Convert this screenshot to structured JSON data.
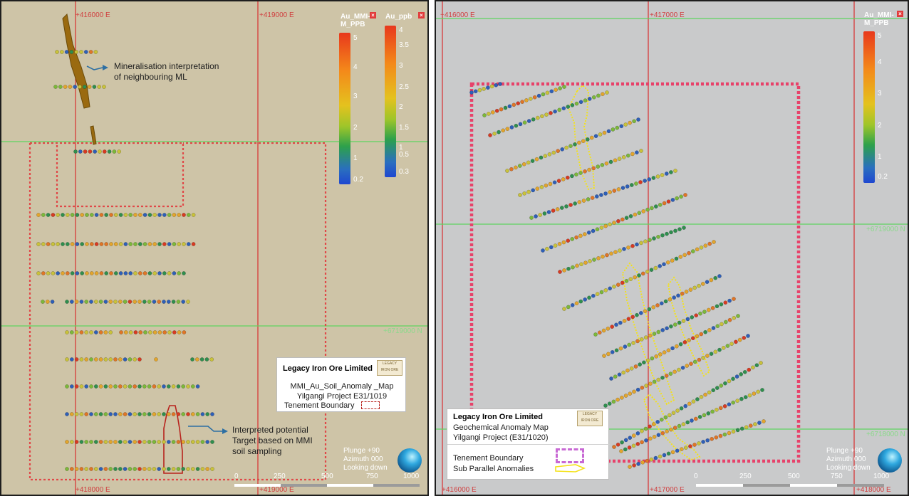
{
  "left_map": {
    "coords": {
      "top_left": "+416000 E",
      "top_right": "+419000 E",
      "bottom_left": "+418000 E",
      "bottom_right": "+419000 E",
      "right_mid": "+6719000 N"
    },
    "legends": [
      {
        "title": "Au_MMI-M_PPB",
        "ticks": [
          "5",
          "4",
          "3",
          "2",
          "1",
          "0.2"
        ]
      },
      {
        "title": "Au_ppb",
        "ticks": [
          "4",
          "3.5",
          "3",
          "2.5",
          "2",
          "1.5",
          "1",
          "0.5",
          "0.3"
        ]
      }
    ],
    "annotations": {
      "mineralisation": [
        "Mineralisation interpretation",
        "of neighbouring ML"
      ],
      "target": [
        "Interpreted potential",
        "Target based on  MMI",
        "soil sampling"
      ]
    },
    "title_block": {
      "company": "Legacy Iron Ore Limited",
      "map_name": "MMI_Au_Soil_Anomaly _Map",
      "project": "Yilgangi Project E31/1019",
      "boundary_label": "Tenement Boundary"
    },
    "view": {
      "plunge": "Plunge +90",
      "azimuth": "Azimuth 000",
      "looking": "Looking down"
    },
    "scale": [
      "0",
      "250",
      "500",
      "750",
      "1000"
    ]
  },
  "right_map": {
    "coords": {
      "top_left": "+416000 E",
      "top_mid": "+417000 E",
      "bottom_left": "+416000 E",
      "bottom_mid": "+417000 E",
      "bottom_right": "+418000 E",
      "right_mid": "+6719000 N",
      "right_low": "+6718000 N"
    },
    "legend": {
      "title": "Au_MMI-M_PPB",
      "ticks": [
        "5",
        "4",
        "3",
        "2",
        "1",
        "0.2"
      ]
    },
    "title_block": {
      "company": "Legacy Iron Ore Limited",
      "map_name": "Geochemical Anomaly Map",
      "project": "Yilgangi Project (E31/1020)",
      "boundary_label": "Tenement Boundary",
      "anomaly_label": "Sub Parallel Anomalies"
    },
    "view": {
      "plunge": "Plunge +90",
      "azimuth": "Azimuth 000",
      "looking": "Looking down"
    },
    "scale": [
      "0",
      "250",
      "500",
      "750",
      "1000"
    ]
  },
  "colors": {
    "grid_red": "#d82f2f",
    "grid_green": "#5fd35f",
    "boundary_left": "#e04848",
    "boundary_right": "#e7426a",
    "anomaly": "#f4e21a",
    "mineralisation": "#9a6a10",
    "target_outline": "#b8231d"
  },
  "icons": {
    "legend_close": "close-icon",
    "view_globe": "globe-icon"
  }
}
